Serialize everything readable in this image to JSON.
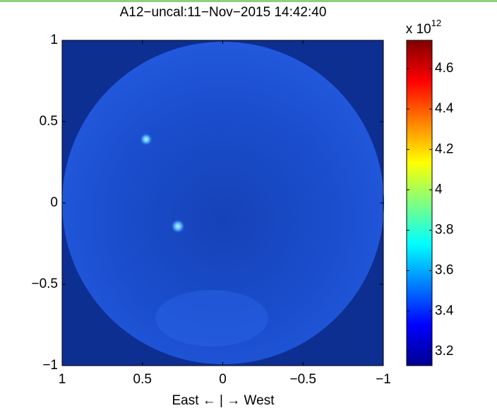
{
  "chart_data": {
    "type": "image",
    "title": "A12−uncal:11−Nov−2015 14:42:40",
    "x_label": "East ← | → West",
    "xlim": [
      1,
      -1
    ],
    "xticks": [
      1,
      0.5,
      0,
      {
        "value": -0.5,
        "label": "−0.5"
      },
      {
        "value": -1,
        "label": "−1"
      }
    ],
    "ylim": [
      -1,
      1
    ],
    "yticks": [
      {
        "value": -1,
        "label": "−1"
      },
      {
        "value": -0.5,
        "label": "−0.5"
      },
      0,
      0.5,
      1
    ],
    "colormap": "jet",
    "colorbar": {
      "multiplier": "x 10",
      "exponent": "12",
      "clim": [
        3.13,
        4.74
      ],
      "ticks": [
        3.2,
        3.4,
        3.6,
        3.8,
        4,
        4.2,
        4.4,
        4.6
      ]
    }
  }
}
